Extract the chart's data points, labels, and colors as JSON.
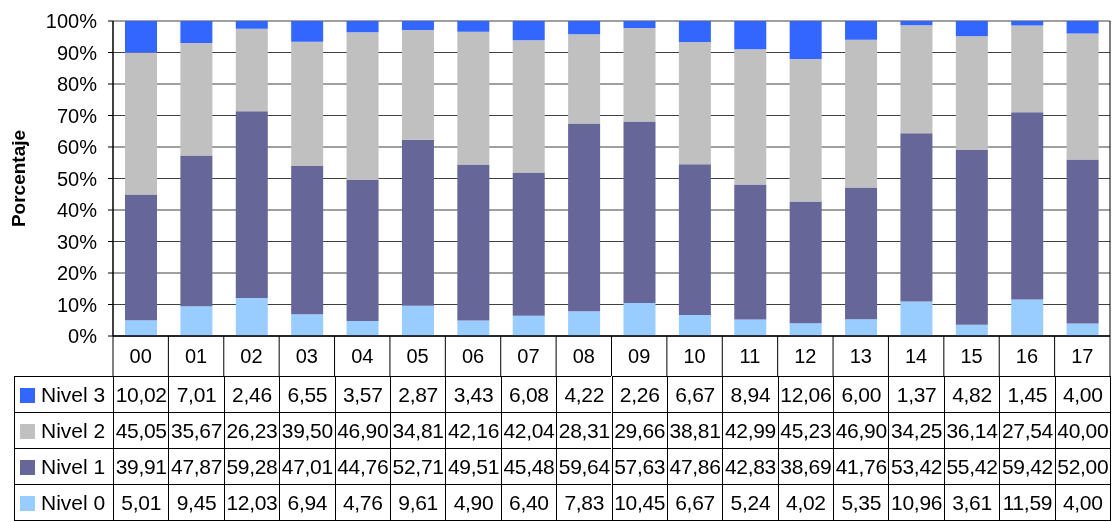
{
  "chart_data": {
    "type": "bar",
    "stacked": true,
    "ylabel": "Porcentaje",
    "categories": [
      "00",
      "01",
      "02",
      "03",
      "04",
      "05",
      "06",
      "07",
      "08",
      "09",
      "10",
      "11",
      "12",
      "13",
      "14",
      "15",
      "16",
      "17"
    ],
    "series": [
      {
        "name": "Nivel 0",
        "color": "#99ccff",
        "values": [
          5.01,
          9.45,
          12.03,
          6.94,
          4.76,
          9.61,
          4.9,
          6.4,
          7.83,
          10.45,
          6.67,
          5.24,
          4.02,
          5.35,
          10.96,
          3.61,
          11.59,
          4.0
        ],
        "value_labels": [
          "5,01",
          "9,45",
          "12,03",
          "6,94",
          "4,76",
          "9,61",
          "4,90",
          "6,40",
          "7,83",
          "10,45",
          "6,67",
          "5,24",
          "4,02",
          "5,35",
          "10,96",
          "3,61",
          "11,59",
          "4,00"
        ]
      },
      {
        "name": "Nivel 1",
        "color": "#666699",
        "values": [
          39.91,
          47.87,
          59.28,
          47.01,
          44.76,
          52.71,
          49.51,
          45.48,
          59.64,
          57.63,
          47.86,
          42.83,
          38.69,
          41.76,
          53.42,
          55.42,
          59.42,
          52.0
        ],
        "value_labels": [
          "39,91",
          "47,87",
          "59,28",
          "47,01",
          "44,76",
          "52,71",
          "49,51",
          "45,48",
          "59,64",
          "57,63",
          "47,86",
          "42,83",
          "38,69",
          "41,76",
          "53,42",
          "55,42",
          "59,42",
          "52,00"
        ]
      },
      {
        "name": "Nivel 2",
        "color": "#c0c0c0",
        "values": [
          45.05,
          35.67,
          26.23,
          39.5,
          46.9,
          34.81,
          42.16,
          42.04,
          28.31,
          29.66,
          38.81,
          42.99,
          45.23,
          46.9,
          34.25,
          36.14,
          27.54,
          40.0
        ],
        "value_labels": [
          "45,05",
          "35,67",
          "26,23",
          "39,50",
          "46,90",
          "34,81",
          "42,16",
          "42,04",
          "28,31",
          "29,66",
          "38,81",
          "42,99",
          "45,23",
          "46,90",
          "34,25",
          "36,14",
          "27,54",
          "40,00"
        ]
      },
      {
        "name": "Nivel 3",
        "color": "#3366ff",
        "values": [
          10.02,
          7.01,
          2.46,
          6.55,
          3.57,
          2.87,
          3.43,
          6.08,
          4.22,
          2.26,
          6.67,
          8.94,
          12.06,
          6.0,
          1.37,
          4.82,
          1.45,
          4.0
        ],
        "value_labels": [
          "10,02",
          "7,01",
          "2,46",
          "6,55",
          "3,57",
          "2,87",
          "3,43",
          "6,08",
          "4,22",
          "2,26",
          "6,67",
          "8,94",
          "12,06",
          "6,00",
          "1,37",
          "4,82",
          "1,45",
          "4,00"
        ]
      }
    ],
    "ylim": [
      0,
      100
    ],
    "yticks": [
      {
        "value": 0,
        "label": "0%"
      },
      {
        "value": 10,
        "label": "10%"
      },
      {
        "value": 20,
        "label": "20%"
      },
      {
        "value": 30,
        "label": "30%"
      },
      {
        "value": 40,
        "label": "40%"
      },
      {
        "value": 50,
        "label": "50%"
      },
      {
        "value": 60,
        "label": "60%"
      },
      {
        "value": 70,
        "label": "70%"
      },
      {
        "value": 80,
        "label": "80%"
      },
      {
        "value": 90,
        "label": "90%"
      },
      {
        "value": 100,
        "label": "100%"
      }
    ],
    "grid": "y",
    "legend": "bottom"
  }
}
